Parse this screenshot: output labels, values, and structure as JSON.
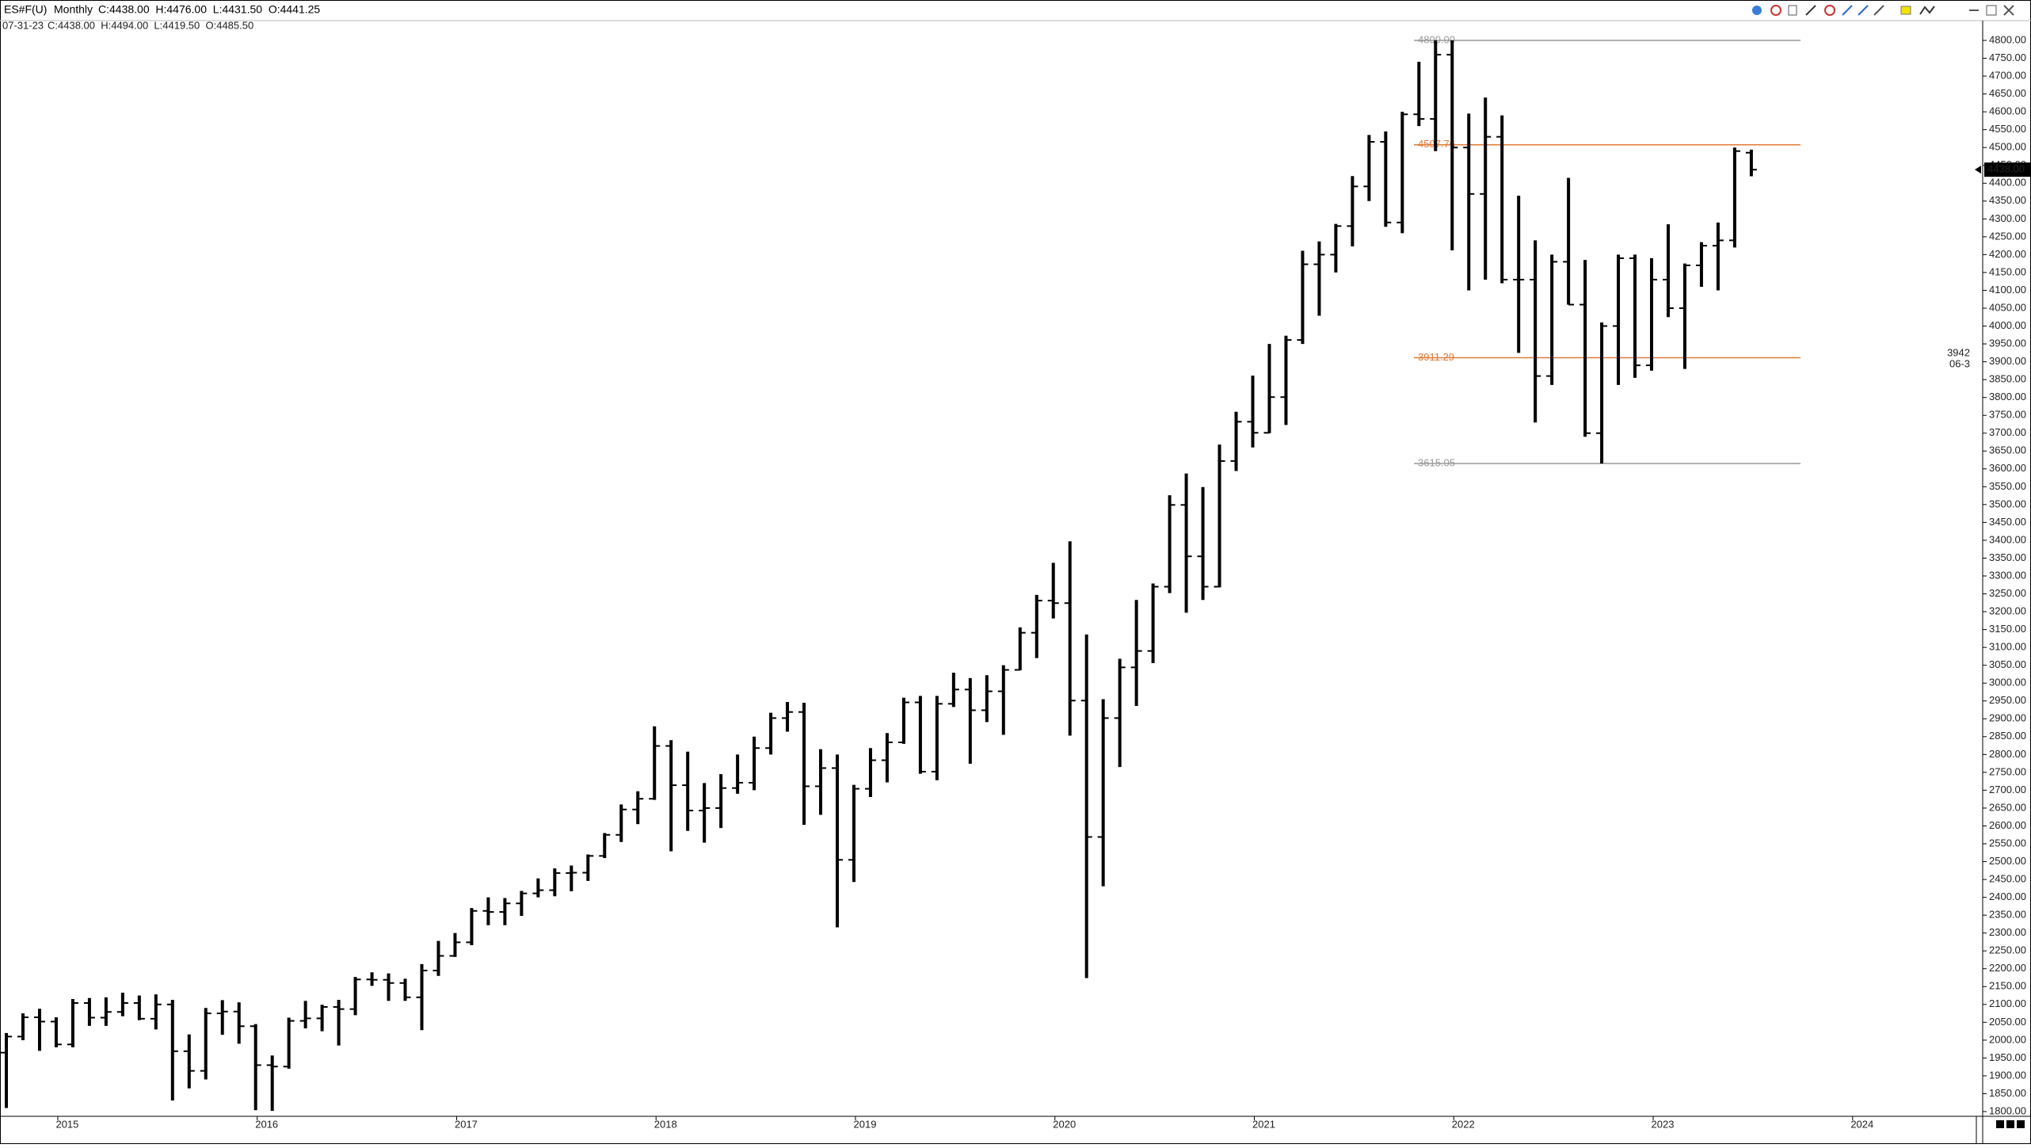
{
  "chart_data": {
    "type": "ohlc",
    "header": {
      "symbol": "ES#F(U)",
      "interval": "Monthly",
      "quote": "C:4438.00  H:4476.00  L:4431.50  O:4441.25",
      "date": "07-31-23",
      "bar_quote": "C:4438.00  H:4494.00  L:4419.50  O:4485.50"
    },
    "categories": [
      null,
      null,
      null,
      null,
      null,
      null,
      null,
      null,
      null,
      null,
      null,
      null,
      null,
      null,
      null,
      null,
      null,
      null,
      null,
      null,
      null,
      null,
      null,
      null,
      null,
      null,
      null,
      null,
      null,
      null,
      null,
      null,
      null,
      null,
      null,
      null,
      null,
      null,
      null,
      null,
      null,
      null,
      null,
      null,
      null,
      null,
      null,
      null,
      null,
      null,
      null,
      null,
      null,
      null,
      null,
      null,
      null,
      null,
      null,
      null,
      null,
      null,
      null,
      null,
      null,
      null,
      null,
      null,
      null,
      null,
      null,
      null,
      null,
      null,
      null,
      null,
      null,
      null,
      null,
      null,
      null,
      null,
      null,
      null,
      null,
      null,
      null,
      null,
      null,
      null,
      null,
      null,
      null,
      null,
      null,
      null,
      null,
      null,
      null,
      null,
      null,
      null,
      null,
      null,
      null,
      null
    ],
    "open": [
      1965,
      2010,
      2064,
      2052,
      1988,
      2104,
      2063,
      2079,
      2104,
      2060,
      2100,
      1969,
      1914,
      2075,
      2080,
      2039,
      1930,
      1926,
      2054,
      2061,
      2093,
      2087,
      2170,
      2169,
      2160,
      2120,
      2195,
      2236,
      2274,
      2362,
      2359,
      2383,
      2411,
      2420,
      2468,
      2469,
      2516,
      2575,
      2646,
      2676,
      2824,
      2714,
      2643,
      2650,
      2706,
      2721,
      2818,
      2902,
      2919,
      2711,
      2762,
      2505,
      2704,
      2784,
      2834,
      2946,
      2752,
      2942,
      2982,
      2924,
      2977,
      3037,
      3141,
      3231,
      3224,
      2951,
      2569,
      2902,
      3044,
      3090,
      3270,
      3499,
      3355,
      3270,
      3622,
      3732,
      3701,
      3801,
      3961,
      4173,
      4200,
      4280,
      4391,
      4516,
      4290,
      4593,
      4580,
      4760,
      4500,
      4370,
      4530,
      4130,
      4130,
      3860,
      4180,
      4060,
      3700,
      4000,
      4190,
      3890,
      4130,
      4050,
      4170,
      4225,
      4240,
      4485.5
    ],
    "high": [
      2020,
      2075,
      2088,
      2064,
      2115,
      2118,
      2120,
      2133,
      2125,
      2128,
      2113,
      2016,
      2090,
      2112,
      2106,
      2045,
      1957,
      2063,
      2110,
      2099,
      2113,
      2177,
      2190,
      2187,
      2172,
      2213,
      2278,
      2300,
      2370,
      2400,
      2398,
      2418,
      2453,
      2481,
      2489,
      2520,
      2580,
      2660,
      2697,
      2879,
      2840,
      2808,
      2720,
      2745,
      2800,
      2850,
      2917,
      2947,
      2945,
      2815,
      2800,
      2715,
      2818,
      2860,
      2959,
      2964,
      2964,
      3029,
      3014,
      3022,
      3050,
      3156,
      3247,
      3337,
      3397,
      3136,
      2955,
      3068,
      3233,
      3279,
      3526,
      3587,
      3549,
      3668,
      3760,
      3861,
      3950,
      3973,
      4211,
      4237,
      4286,
      4420,
      4535,
      4545,
      4600,
      4740,
      4800,
      4800,
      4595,
      4640,
      4590,
      4365,
      4240,
      4200,
      4415,
      4185,
      4010,
      4200,
      4200,
      4190,
      4285,
      4175,
      4235,
      4290,
      4500,
      4494
    ],
    "low": [
      1810,
      2000,
      1970,
      1980,
      1980,
      2040,
      2040,
      2067,
      2056,
      2030,
      1831,
      1865,
      1890,
      2015,
      1990,
      1804,
      1802,
      1920,
      2033,
      2025,
      1985,
      2070,
      2152,
      2110,
      2110,
      2028,
      2180,
      2233,
      2266,
      2322,
      2322,
      2348,
      2400,
      2403,
      2417,
      2446,
      2510,
      2555,
      2605,
      2673,
      2529,
      2586,
      2553,
      2594,
      2690,
      2700,
      2800,
      2864,
      2603,
      2631,
      2316,
      2443,
      2681,
      2722,
      2830,
      2746,
      2728,
      2933,
      2774,
      2891,
      2855,
      3036,
      3070,
      3181,
      2853,
      2174,
      2431,
      2765,
      2936,
      3056,
      3252,
      3197,
      3233,
      3268,
      3594,
      3660,
      3700,
      3723,
      3950,
      4029,
      4150,
      4223,
      4350,
      4278,
      4260,
      4560,
      4490,
      4212,
      4100,
      4130,
      4120,
      3925,
      3730,
      3835,
      4060,
      3690,
      3615,
      3835,
      3855,
      3875,
      4025,
      3880,
      4110,
      4100,
      4220,
      4419.5
    ],
    "close": [
      2010,
      2064,
      2052,
      1988,
      2104,
      2063,
      2079,
      2104,
      2060,
      2100,
      1969,
      1914,
      2075,
      2080,
      2039,
      1930,
      1926,
      2054,
      2061,
      2093,
      2087,
      2170,
      2169,
      2160,
      2120,
      2195,
      2236,
      2274,
      2362,
      2359,
      2383,
      2411,
      2420,
      2468,
      2469,
      2516,
      2575,
      2646,
      2676,
      2824,
      2714,
      2643,
      2650,
      2706,
      2721,
      2818,
      2902,
      2919,
      2711,
      2762,
      2505,
      2704,
      2784,
      2834,
      2946,
      2752,
      2942,
      2982,
      2924,
      2977,
      3037,
      3141,
      3231,
      3224,
      2951,
      2569,
      2902,
      3044,
      3090,
      3270,
      3499,
      3355,
      3270,
      3622,
      3732,
      3701,
      3801,
      3961,
      4173,
      4200,
      4280,
      4391,
      4516,
      4290,
      4593,
      4580,
      4760,
      4500,
      4370,
      4530,
      4130,
      4130,
      3860,
      4180,
      4060,
      3700,
      4000,
      4190,
      3890,
      4130,
      4050,
      4170,
      4225,
      4240,
      4490,
      4438
    ],
    "color": "#000000",
    "xticks": [
      "2015",
      "2016",
      "2017",
      "2018",
      "2019",
      "2020",
      "2021",
      "2022",
      "2023",
      "2024"
    ],
    "ylim": [
      1800,
      4800
    ],
    "yticks": [
      {
        "value": 1800,
        "label": "1800.00"
      },
      {
        "value": 1850,
        "label": "1850.00"
      },
      {
        "value": 1900,
        "label": "1900.00"
      },
      {
        "value": 1950,
        "label": "1950.00"
      },
      {
        "value": 2000,
        "label": "2000.00"
      },
      {
        "value": 2050,
        "label": "2050.00"
      },
      {
        "value": 2100,
        "label": "2100.00"
      },
      {
        "value": 2150,
        "label": "2150.00"
      },
      {
        "value": 2200,
        "label": "2200.00"
      },
      {
        "value": 2250,
        "label": "2250.00"
      },
      {
        "value": 2300,
        "label": "2300.00"
      },
      {
        "value": 2350,
        "label": "2350.00"
      },
      {
        "value": 2400,
        "label": "2400.00"
      },
      {
        "value": 2450,
        "label": "2450.00"
      },
      {
        "value": 2500,
        "label": "2500.00"
      },
      {
        "value": 2550,
        "label": "2550.00"
      },
      {
        "value": 2600,
        "label": "2600.00"
      },
      {
        "value": 2650,
        "label": "2650.00"
      },
      {
        "value": 2700,
        "label": "2700.00"
      },
      {
        "value": 2750,
        "label": "2750.00"
      },
      {
        "value": 2800,
        "label": "2800.00"
      },
      {
        "value": 2850,
        "label": "2850.00"
      },
      {
        "value": 2900,
        "label": "2900.00"
      },
      {
        "value": 2950,
        "label": "2950.00"
      },
      {
        "value": 3000,
        "label": "3000.00"
      },
      {
        "value": 3050,
        "label": "3050.00"
      },
      {
        "value": 3100,
        "label": "3100.00"
      },
      {
        "value": 3150,
        "label": "3150.00"
      },
      {
        "value": 3200,
        "label": "3200.00"
      },
      {
        "value": 3250,
        "label": "3250.00"
      },
      {
        "value": 3300,
        "label": "3300.00"
      },
      {
        "value": 3350,
        "label": "3350.00"
      },
      {
        "value": 3400,
        "label": "3400.00"
      },
      {
        "value": 3450,
        "label": "3450.00"
      },
      {
        "value": 3500,
        "label": "3500.00"
      },
      {
        "value": 3550,
        "label": "3550.00"
      },
      {
        "value": 3600,
        "label": "3600.00"
      },
      {
        "value": 3650,
        "label": "3650.00"
      },
      {
        "value": 3700,
        "label": "3700.00"
      },
      {
        "value": 3750,
        "label": "3750.00"
      },
      {
        "value": 3800,
        "label": "3800.00"
      },
      {
        "value": 3850,
        "label": "3850.00"
      },
      {
        "value": 3900,
        "label": "3900.00"
      },
      {
        "value": 3950,
        "label": "3950.00"
      },
      {
        "value": 4000,
        "label": "4000.00"
      },
      {
        "value": 4050,
        "label": "4050.00"
      },
      {
        "value": 4100,
        "label": "4100.00"
      },
      {
        "value": 4150,
        "label": "4150.00"
      },
      {
        "value": 4200,
        "label": "4200.00"
      },
      {
        "value": 4250,
        "label": "4250.00"
      },
      {
        "value": 4300,
        "label": "4300.00"
      },
      {
        "value": 4350,
        "label": "4350.00"
      },
      {
        "value": 4400,
        "label": "4400.00"
      },
      {
        "value": 4450,
        "label": "4450.00"
      },
      {
        "value": 4500,
        "label": "4500.00"
      },
      {
        "value": 4550,
        "label": "4550.00"
      },
      {
        "value": 4600,
        "label": "4600.00"
      },
      {
        "value": 4650,
        "label": "4650.00"
      },
      {
        "value": 4700,
        "label": "4700.00"
      },
      {
        "value": 4750,
        "label": "4750.00"
      },
      {
        "value": 4800,
        "label": "4800.00"
      }
    ],
    "levels": [
      {
        "value": 4800,
        "label": "4800.00",
        "color": "#999999"
      },
      {
        "value": 4507.76,
        "label": "4507.76",
        "color": "#e07b39"
      },
      {
        "value": 3911.29,
        "label": "3911.29",
        "color": "#e07b39"
      },
      {
        "value": 3615.05,
        "label": "3615.05",
        "color": "#999999"
      }
    ],
    "last_price": {
      "value": 4438,
      "label": "4438.00"
    },
    "annotations": [
      "3942",
      "06-3"
    ]
  }
}
